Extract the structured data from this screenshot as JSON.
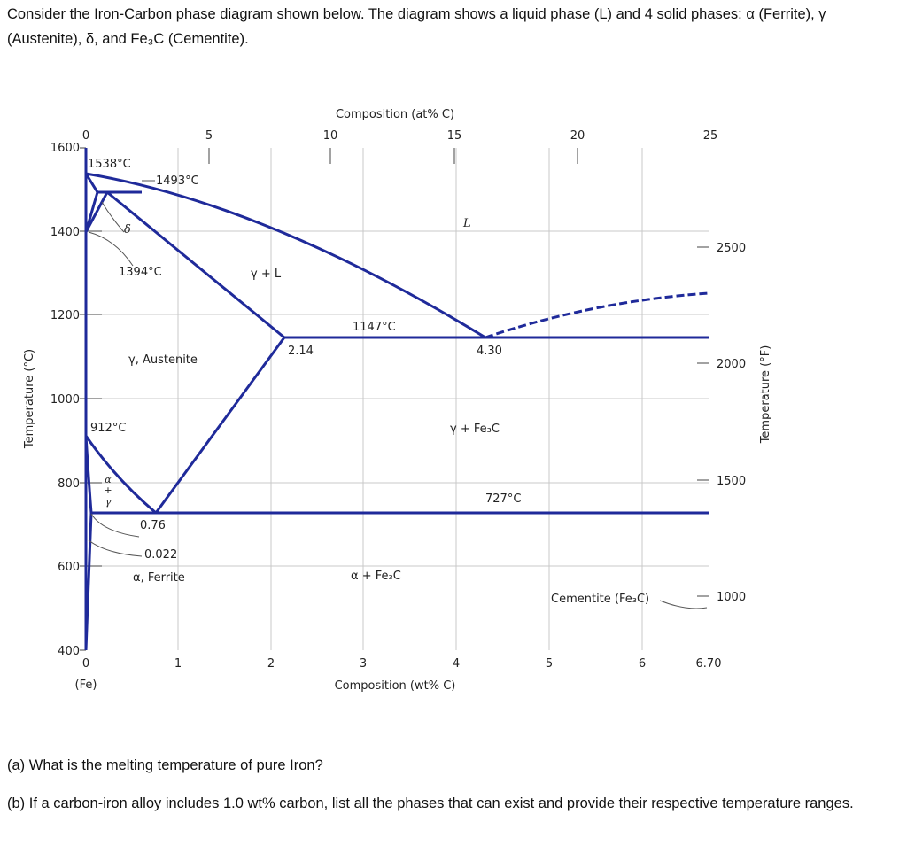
{
  "question": {
    "intro": "Consider the Iron-Carbon phase diagram shown below. The diagram shows a liquid phase (L) and 4 solid phases: α (Ferrite), γ (Austenite), δ, and Fe₃C (Cementite).",
    "parts": [
      "(a) What is the melting temperature of pure Iron?",
      "(b) If a carbon-iron alloy includes 1.0 wt% carbon, list all the phases that can exist and provide their respective temperature ranges."
    ]
  },
  "diagram": {
    "top_axis": {
      "title": "Composition (at% C)",
      "ticks": [
        "0",
        "5",
        "10",
        "15",
        "20",
        "25"
      ]
    },
    "bottom_axis": {
      "title": "Composition (wt% C)",
      "ticks": [
        "0",
        "1",
        "2",
        "3",
        "4",
        "5",
        "6",
        "6.70"
      ],
      "origin_note": "(Fe)"
    },
    "left_axis": {
      "title": "Temperature (°C)",
      "ticks": [
        "1600",
        "1400",
        "1200",
        "1000",
        "800",
        "600",
        "400"
      ]
    },
    "right_axis": {
      "title": "Temperature (°F)",
      "ticks": [
        "2500",
        "2000",
        "1500",
        "1000"
      ]
    },
    "labels": {
      "t1538": "1538°C",
      "t1493": "1493°C",
      "t1394": "1394°C",
      "t912": "912°C",
      "t1147": "1147°C",
      "t727": "727°C",
      "c214": "2.14",
      "c430": "4.30",
      "c076": "0.76",
      "c0022": "0.022",
      "delta": "δ",
      "liquid": "L",
      "gamma_liquid": "γ + L",
      "austenite": "γ, Austenite",
      "gamma_cementite": "γ + Fe₃C",
      "alpha_cementite": "α + Fe₃C",
      "ferrite": "α, Ferrite",
      "cementite": "Cementite (Fe₃C)",
      "alpha_gamma": [
        "α",
        "+",
        "γ"
      ]
    }
  }
}
